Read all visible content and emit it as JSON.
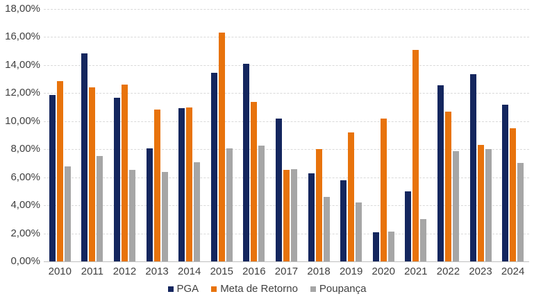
{
  "chart_data": {
    "type": "bar",
    "title": "",
    "xlabel": "",
    "ylabel": "",
    "categories": [
      "2010",
      "2011",
      "2012",
      "2013",
      "2014",
      "2015",
      "2016",
      "2017",
      "2018",
      "2019",
      "2020",
      "2021",
      "2022",
      "2023",
      "2024"
    ],
    "series": [
      {
        "name": "PGA",
        "color": "#14265E",
        "values": [
          11.85,
          14.85,
          11.65,
          8.05,
          10.95,
          13.45,
          14.1,
          10.2,
          6.3,
          5.8,
          2.1,
          5.0,
          12.55,
          13.35,
          11.2
        ]
      },
      {
        "name": "Meta de Retorno",
        "color": "#E8730C",
        "values": [
          12.85,
          12.4,
          12.6,
          10.85,
          11.0,
          16.3,
          11.35,
          6.55,
          8.0,
          9.2,
          10.2,
          15.1,
          10.7,
          8.3,
          9.5
        ]
      },
      {
        "name": "Poupança",
        "color": "#A6A6A6",
        "values": [
          6.8,
          7.5,
          6.55,
          6.4,
          7.05,
          8.05,
          8.25,
          6.6,
          4.6,
          4.2,
          2.15,
          3.0,
          7.85,
          8.0,
          7.0
        ]
      }
    ],
    "ylim": [
      0,
      18
    ],
    "y_ticks": [
      "0,00%",
      "2,00%",
      "4,00%",
      "6,00%",
      "8,00%",
      "10,00%",
      "12,00%",
      "14,00%",
      "16,00%",
      "18,00%"
    ],
    "grid": true,
    "gridline_style": "dashed",
    "legend_position": "bottom"
  },
  "colors": {
    "background": "#FFFFFF",
    "gridline": "#D9D9D9",
    "axis_line": "#BFBFBF",
    "text": "#3F3F3F"
  }
}
